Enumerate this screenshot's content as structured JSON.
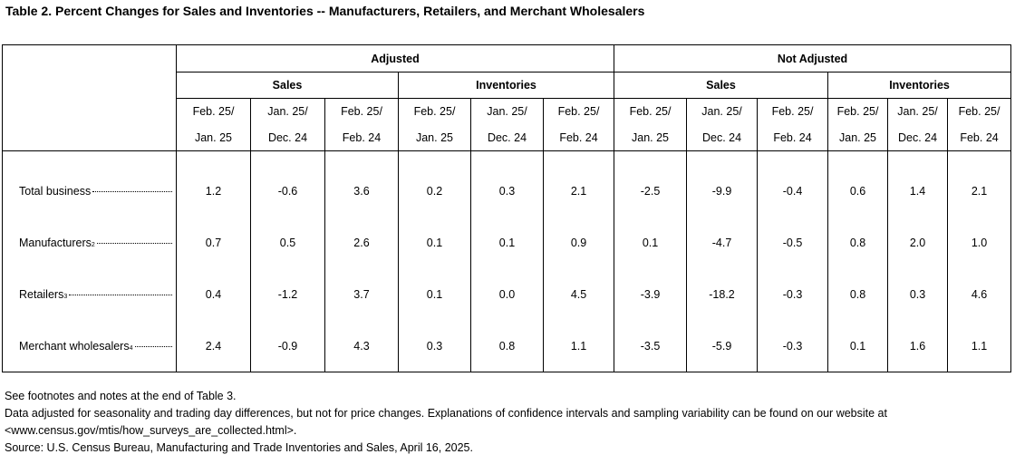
{
  "title": "Table 2. Percent Changes for Sales and Inventories -- Manufacturers, Retailers, and Merchant Wholesalers",
  "header": {
    "adjusted": "Adjusted",
    "not_adjusted": "Not Adjusted",
    "sales": "Sales",
    "inventories": "Inventories",
    "periods_top": [
      "Feb. 25/",
      "Jan. 25/",
      "Feb. 25/"
    ],
    "periods_bottom": [
      "Jan. 25",
      "Dec. 24",
      "Feb. 24"
    ]
  },
  "rows": [
    {
      "label": "Total business",
      "sup": "",
      "values": [
        "1.2",
        "-0.6",
        "3.6",
        "0.2",
        "0.3",
        "2.1",
        "-2.5",
        "-9.9",
        "-0.4",
        "0.6",
        "1.4",
        "2.1"
      ]
    },
    {
      "label": "Manufacturers",
      "sup": "2",
      "values": [
        "0.7",
        "0.5",
        "2.6",
        "0.1",
        "0.1",
        "0.9",
        "0.1",
        "-4.7",
        "-0.5",
        "0.8",
        "2.0",
        "1.0"
      ]
    },
    {
      "label": "Retailers",
      "sup": "3",
      "values": [
        "0.4",
        "-1.2",
        "3.7",
        "0.1",
        "0.0",
        "4.5",
        "-3.9",
        "-18.2",
        "-0.3",
        "0.8",
        "0.3",
        "4.6"
      ]
    },
    {
      "label": "Merchant wholesalers",
      "sup": "4",
      "values": [
        "2.4",
        "-0.9",
        "4.3",
        "0.3",
        "0.8",
        "1.1",
        "-3.5",
        "-5.9",
        "-0.3",
        "0.1",
        "1.6",
        "1.1"
      ]
    }
  ],
  "notes": [
    "See footnotes and notes at the end of Table 3.",
    "Data adjusted for seasonality and trading day differences, but not for price changes. Explanations of confidence intervals and sampling variability can be found on our website at",
    "<www.census.gov/mtis/how_surveys_are_collected.html>.",
    "Source: U.S. Census Bureau, Manufacturing and Trade Inventories and Sales, April 16, 2025."
  ]
}
